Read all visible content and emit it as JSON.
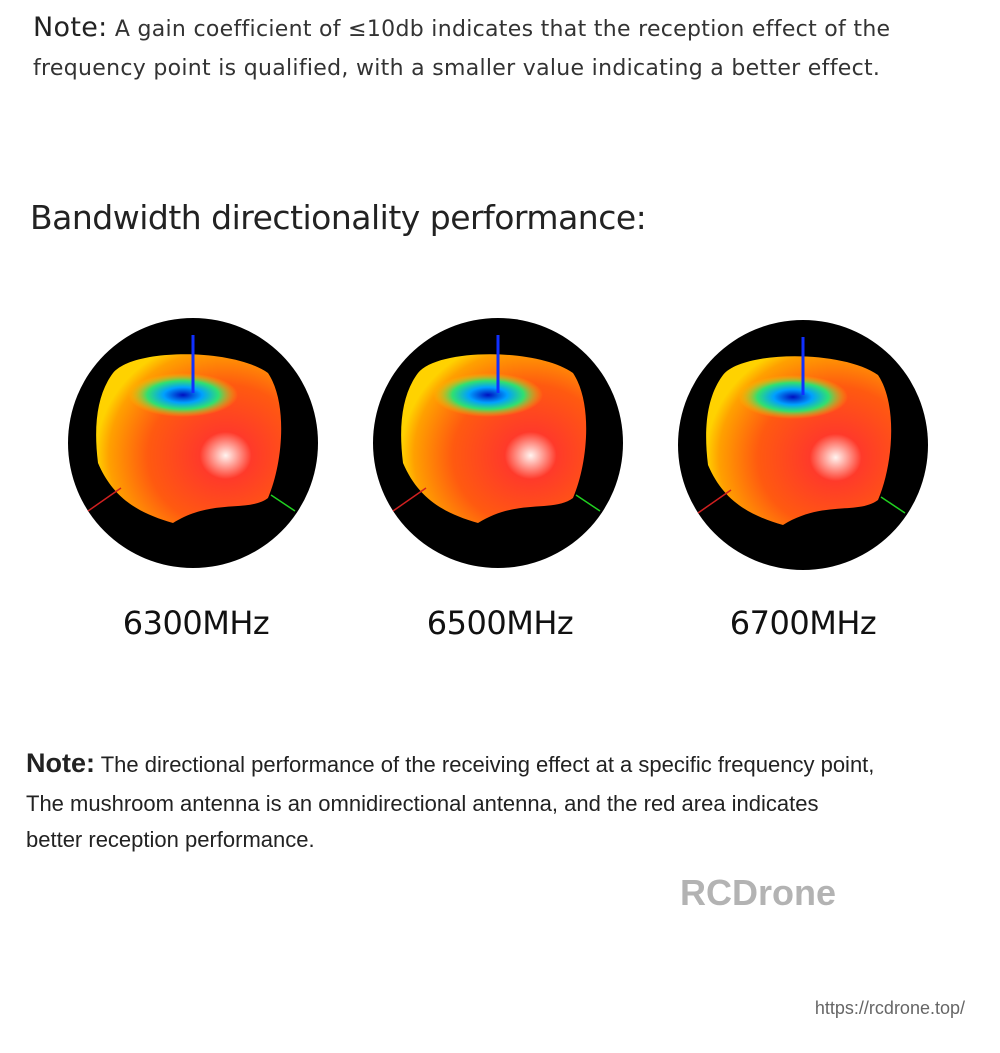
{
  "note1": {
    "label": "Note:",
    "lines": [
      "A gain coefficient of ≤10db indicates that the reception effect of the",
      "frequency point is qualified, with a smaller value indicating a better effect."
    ]
  },
  "heading": "Bandwidth directionality performance:",
  "patterns": [
    {
      "label": "6300MHz"
    },
    {
      "label": "6500MHz"
    },
    {
      "label": "6700MHz"
    }
  ],
  "note2": {
    "label": "Note:",
    "lines": [
      "The directional performance of the receiving effect at a specific frequency point,",
      "The mushroom antenna is an omnidirectional antenna, and the red area indicates",
      "better reception performance."
    ]
  },
  "watermark": "RCDrone",
  "url": "https://rcdrone.top/"
}
